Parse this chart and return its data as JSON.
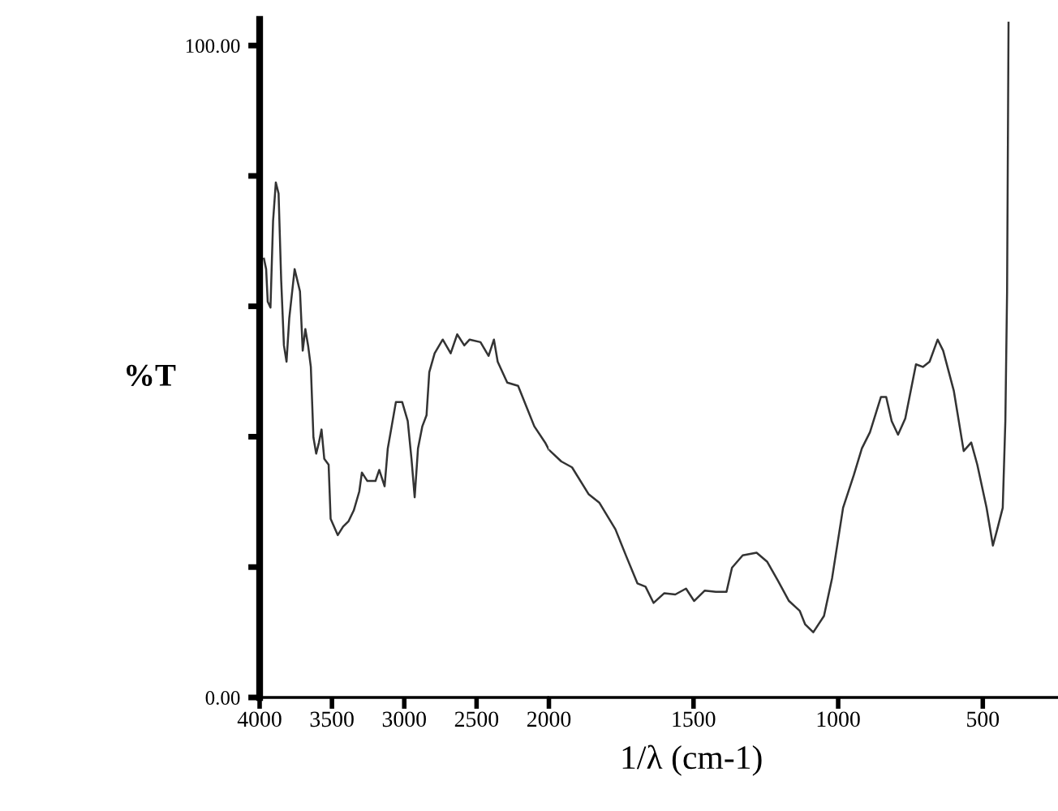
{
  "chart_data": [
    {
      "type": "line",
      "ylabel": "%T",
      "x": [
        3970,
        3955,
        3944,
        3925,
        3907,
        3888,
        3869,
        3851,
        3832,
        3814,
        3795,
        3758,
        3721,
        3702,
        3684,
        3665,
        3646,
        3628,
        3609,
        3590,
        3572,
        3553,
        3523,
        3509,
        3460,
        3423,
        3386,
        3349,
        3311,
        3293,
        3255,
        3199,
        3173,
        3136,
        3114,
        3087,
        3058,
        3014,
        2976,
        2950,
        2928,
        2905,
        2875,
        2846,
        2827,
        2790,
        2734,
        2679,
        2634,
        2585,
        2548,
        2473,
        2417,
        2380,
        2354,
        2288,
        2213,
        2101,
        2026,
        2000
      ],
      "series": [
        {
          "color": "#333333",
          "values": [
            67.3,
            65.7,
            60.7,
            59.8,
            73.1,
            79.0,
            77.3,
            64.0,
            54.0,
            51.5,
            58.2,
            65.7,
            62.3,
            53.2,
            56.5,
            54.0,
            50.7,
            39.9,
            37.4,
            39.1,
            41.1,
            36.6,
            35.7,
            27.4,
            24.9,
            26.2,
            27.0,
            28.7,
            31.6,
            34.5,
            33.2,
            33.2,
            34.9,
            32.4,
            38.2,
            41.6,
            45.3,
            45.3,
            42.4,
            36.6,
            30.7,
            38.2,
            41.6,
            43.3,
            49.9,
            52.8,
            54.9,
            52.8,
            55.7,
            54.0,
            54.9,
            54.5,
            52.4,
            54.9,
            51.5,
            48.3,
            47.8,
            41.6,
            39.1,
            38.0
          ]
        }
      ],
      "xlim": [
        4000,
        2000
      ],
      "xticks": [
        4000,
        3500,
        3000,
        2500,
        2000
      ],
      "ylim": [
        0,
        104
      ],
      "yticks": [
        {
          "value": 0,
          "label": "0.00"
        },
        {
          "value": 20,
          "label": null
        },
        {
          "value": 40,
          "label": null
        },
        {
          "value": 60,
          "label": null
        },
        {
          "value": 80,
          "label": null
        },
        {
          "value": 100,
          "label": "100.00"
        }
      ],
      "grid": false,
      "legend": false,
      "marker": "none",
      "line_style": "solid"
    },
    {
      "type": "line",
      "xlabel": "1/λ (cm-1)",
      "x": [
        2000,
        1957,
        1920,
        1863,
        1826,
        1770,
        1732,
        1694,
        1666,
        1638,
        1601,
        1563,
        1526,
        1498,
        1461,
        1423,
        1386,
        1367,
        1330,
        1282,
        1245,
        1208,
        1170,
        1133,
        1114,
        1086,
        1049,
        1021,
        983,
        946,
        918,
        890,
        852,
        834,
        815,
        793,
        768,
        731,
        707,
        684,
        656,
        637,
        600,
        566,
        540,
        519,
        487,
        465,
        450,
        431,
        422,
        416,
        411
      ],
      "series": [
        {
          "color": "#333333",
          "values": [
            38.0,
            36.2,
            35.3,
            31.2,
            29.9,
            25.8,
            21.6,
            17.5,
            17.0,
            14.5,
            16.0,
            15.8,
            16.7,
            14.8,
            16.4,
            16.2,
            16.2,
            19.9,
            21.8,
            22.2,
            20.8,
            17.9,
            14.8,
            13.3,
            11.2,
            10.0,
            12.5,
            18.3,
            29.1,
            34.1,
            38.2,
            40.7,
            46.1,
            46.1,
            42.4,
            40.3,
            42.8,
            51.1,
            50.7,
            51.5,
            54.9,
            53.2,
            47.0,
            37.8,
            39.1,
            35.7,
            29.1,
            23.3,
            25.8,
            29.1,
            42.4,
            62.3,
            103.5
          ]
        }
      ],
      "xlim": [
        2000,
        240
      ],
      "xticks": [
        1500,
        1000,
        500
      ],
      "ylim": [
        0,
        104
      ],
      "tick_labels": "x",
      "grid": false,
      "legend": false,
      "marker": "none",
      "line_style": "solid"
    }
  ]
}
